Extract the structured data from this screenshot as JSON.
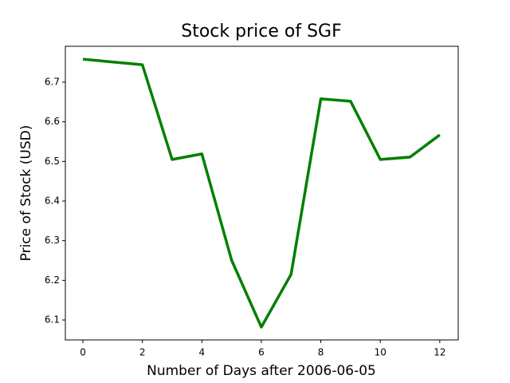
{
  "chart_data": {
    "type": "line",
    "title": "Stock price of SGF",
    "xlabel": "Number of Days after 2006-06-05",
    "ylabel": "Price of Stock (USD)",
    "x": [
      0,
      2,
      3,
      4,
      5,
      6,
      7,
      8,
      9,
      10,
      11,
      12
    ],
    "series": [
      {
        "name": "SGF",
        "color": "#008000",
        "values": [
          6.758,
          6.744,
          6.505,
          6.519,
          6.251,
          6.082,
          6.215,
          6.658,
          6.652,
          6.505,
          6.511,
          6.567
        ]
      }
    ],
    "xlim": [
      -0.59,
      12.62
    ],
    "xticks": [
      0,
      2,
      4,
      6,
      8,
      10,
      12
    ],
    "ylim": [
      6.0497,
      6.7906
    ],
    "yticks": [
      6.1,
      6.2,
      6.3,
      6.4,
      6.5,
      6.6,
      6.7
    ]
  }
}
